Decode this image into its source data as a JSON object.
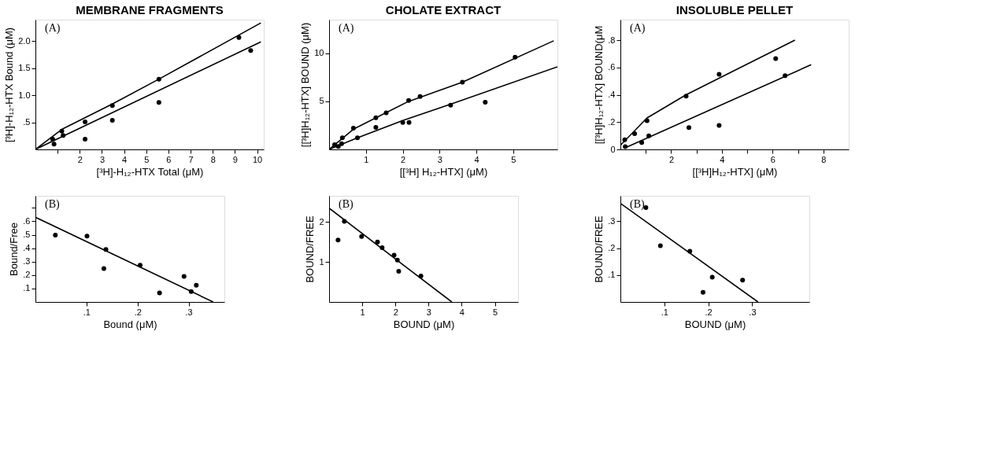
{
  "chart_data": [
    {
      "type": "scatter",
      "title": "MEMBRANE FRAGMENTS",
      "xlabel": "[³H]-H₁₂-HTX Total (μM)",
      "ylabel": "[³H]-H₁₂-HTX Bound (μM)",
      "annotations": [
        "(A)"
      ],
      "xlim": [
        0,
        10.3
      ],
      "ylim": [
        0,
        2.4
      ],
      "xticks": [
        {
          "value": 1,
          "label": null
        },
        2,
        3,
        4,
        5,
        6,
        7,
        8,
        9,
        10
      ],
      "yticks": [
        {
          "value": 0.5,
          "label": ".5"
        },
        {
          "value": 1,
          "label": "1.0"
        },
        {
          "value": 1.5,
          "label": "1.5"
        },
        {
          "value": 2,
          "label": "2.0"
        }
      ],
      "series": [
        {
          "color": "#000000",
          "marker": "circle",
          "x": [
            0.78,
            1.19,
            2.24,
            3.47,
            5.57,
            9.18
          ],
          "values": [
            0.19,
            0.34,
            0.51,
            0.81,
            1.3,
            2.07
          ]
        },
        {
          "color": "#000000",
          "marker": "circle",
          "x": [
            0.84,
            1.25,
            2.24,
            3.47,
            5.57,
            9.71
          ],
          "values": [
            0.1,
            0.26,
            0.19,
            0.54,
            0.87,
            1.83
          ]
        },
        {
          "type": "line",
          "color": "#000000",
          "marker": "none",
          "x": [
            0,
            1.19,
            3.47,
            5.57,
            10.17
          ],
          "values": [
            0,
            0.37,
            0.84,
            1.3,
            2.34
          ]
        },
        {
          "type": "line",
          "color": "#000000",
          "marker": "none",
          "x": [
            0,
            10.17
          ],
          "values": [
            0,
            1.99
          ]
        }
      ]
    },
    {
      "type": "scatter",
      "title": "CHOLATE EXTRACT",
      "xlabel": "[[³H] H₁₂-HTX]  (μM)",
      "ylabel": "[[³H]H₁₂-HTX] BOUND (μM)",
      "annotations": [
        "(A)"
      ],
      "xlim": [
        0,
        6.2
      ],
      "ylim": [
        0,
        13.5
      ],
      "xticks": [
        1,
        2,
        3,
        4,
        5
      ],
      "yticks": [
        5,
        10
      ],
      "series": [
        {
          "color": "#000000",
          "marker": "circle",
          "x": [
            0.15,
            0.36,
            0.66,
            1.27,
            1.55,
            2.16,
            2.47,
            3.62,
            5.05
          ],
          "values": [
            0.5,
            1.2,
            2.2,
            3.3,
            3.8,
            5.1,
            5.5,
            7.0,
            9.6
          ]
        },
        {
          "color": "#000000",
          "marker": "circle",
          "x": [
            0.25,
            0.34,
            0.77,
            1.27,
            2.0,
            2.17,
            3.3,
            4.24
          ],
          "values": [
            0.3,
            0.6,
            1.2,
            2.3,
            2.8,
            2.8,
            4.6,
            4.9
          ]
        },
        {
          "type": "line",
          "color": "#000000",
          "marker": "none",
          "x": [
            0,
            0.66,
            2.16,
            3.62,
            6.1
          ],
          "values": [
            0,
            2.1,
            5.0,
            7.0,
            11.3
          ]
        },
        {
          "type": "line",
          "color": "#000000",
          "marker": "none",
          "x": [
            0,
            0.77,
            2.0,
            3.3,
            6.2
          ],
          "values": [
            0,
            1.2,
            3.0,
            4.7,
            8.6
          ]
        }
      ]
    },
    {
      "type": "scatter",
      "title": "INSOLUBLE PELLET",
      "xlabel": "[[³H]H₁₂-HTX] (μM)",
      "ylabel": "[[³H]H₁₂-HTX] BOUND(μM",
      "annotations": [
        "(A)"
      ],
      "xlim": [
        0,
        9
      ],
      "ylim": [
        0,
        0.95
      ],
      "xticks": [
        {
          "value": 1,
          "label": null
        },
        2,
        {
          "value": 3,
          "label": null
        },
        4,
        {
          "value": 5,
          "label": null
        },
        6,
        {
          "value": 7,
          "label": null
        },
        8
      ],
      "yticks": [
        0,
        {
          "value": 0.2,
          "label": ".2"
        },
        {
          "value": 0.4,
          "label": ".4"
        },
        {
          "value": 0.6,
          "label": ".6"
        },
        {
          "value": 0.8,
          "label": ".8"
        }
      ],
      "series": [
        {
          "color": "#000000",
          "marker": "circle",
          "x": [
            0.17,
            0.56,
            1.05,
            2.59,
            3.89,
            6.12
          ],
          "values": [
            0.07,
            0.115,
            0.21,
            0.39,
            0.55,
            0.665
          ]
        },
        {
          "color": "#000000",
          "marker": "circle",
          "x": [
            0.19,
            0.84,
            1.12,
            2.7,
            3.89,
            6.49
          ],
          "values": [
            0.02,
            0.05,
            0.1,
            0.16,
            0.175,
            0.54
          ]
        },
        {
          "type": "line",
          "color": "#000000",
          "marker": "none",
          "x": [
            0,
            1.05,
            2.59,
            6.88
          ],
          "values": [
            0.03,
            0.23,
            0.4,
            0.8
          ]
        },
        {
          "type": "line",
          "color": "#000000",
          "marker": "none",
          "x": [
            0.17,
            7.52
          ],
          "values": [
            0.01,
            0.62
          ]
        }
      ]
    },
    {
      "type": "scatter",
      "xlabel": "Bound (μM)",
      "ylabel": "Bound/Free",
      "annotations": [
        "(B)"
      ],
      "xlim": [
        0,
        0.37
      ],
      "ylim": [
        0,
        0.79
      ],
      "xticks": [
        {
          "value": 0.1,
          "label": ".1"
        },
        {
          "value": 0.2,
          "label": ".2"
        },
        {
          "value": 0.3,
          "label": ".3"
        }
      ],
      "yticks": [
        {
          "value": 0.1,
          "label": ".1"
        },
        {
          "value": 0.2,
          "label": ".2"
        },
        {
          "value": 0.3,
          "label": ".3"
        },
        {
          "value": 0.4,
          "label": ".4"
        },
        {
          "value": 0.5,
          "label": ".5"
        },
        {
          "value": 0.6,
          "label": ".6"
        },
        {
          "value": 0.7,
          "label": null
        }
      ],
      "series": [
        {
          "color": "#000000",
          "marker": "circle",
          "x": [
            0.039,
            0.101,
            0.138,
            0.134,
            0.205,
            0.243,
            0.291,
            0.305,
            0.315
          ],
          "values": [
            0.498,
            0.49,
            0.391,
            0.248,
            0.274,
            0.068,
            0.19,
            0.077,
            0.124
          ]
        },
        {
          "type": "line",
          "color": "#000000",
          "marker": "none",
          "x": [
            0,
            0.348
          ],
          "values": [
            0.63,
            0
          ]
        }
      ]
    },
    {
      "type": "scatter",
      "xlabel": "BOUND (μM)",
      "ylabel": "BOUND/FREE",
      "annotations": [
        "(B)"
      ],
      "xlim": [
        0,
        5.7
      ],
      "ylim": [
        0,
        2.66
      ],
      "xticks": [
        1,
        2,
        3,
        4,
        5
      ],
      "yticks": [
        1,
        2
      ],
      "series": [
        {
          "color": "#000000",
          "marker": "circle",
          "x": [
            0.27,
            0.46,
            0.98,
            1.46,
            1.6,
            1.96,
            2.06,
            2.1,
            2.77
          ],
          "values": [
            1.55,
            2.02,
            1.64,
            1.5,
            1.36,
            1.17,
            1.05,
            0.77,
            0.65
          ]
        },
        {
          "type": "line",
          "color": "#000000",
          "marker": "none",
          "x": [
            0,
            3.7
          ],
          "values": [
            2.35,
            0
          ]
        }
      ]
    },
    {
      "type": "scatter",
      "xlabel": "BOUND (μM)",
      "ylabel": "BOUND/FREE",
      "annotations": [
        "(B)"
      ],
      "xlim": [
        0,
        0.43
      ],
      "ylim": [
        0,
        0.395
      ],
      "xticks": [
        {
          "value": 0.1,
          "label": ".1"
        },
        {
          "value": 0.2,
          "label": ".2"
        },
        {
          "value": 0.3,
          "label": ".3"
        }
      ],
      "yticks": [
        {
          "value": 0.1,
          "label": ".1"
        },
        {
          "value": 0.2,
          "label": ".2"
        },
        {
          "value": 0.3,
          "label": ".3"
        }
      ],
      "series": [
        {
          "color": "#000000",
          "marker": "circle",
          "x": [
            0.058,
            0.091,
            0.158,
            0.209,
            0.188,
            0.278
          ],
          "values": [
            0.351,
            0.209,
            0.189,
            0.092,
            0.036,
            0.081
          ]
        },
        {
          "type": "line",
          "color": "#000000",
          "marker": "none",
          "x": [
            0,
            0.313
          ],
          "values": [
            0.367,
            0
          ]
        }
      ]
    }
  ]
}
